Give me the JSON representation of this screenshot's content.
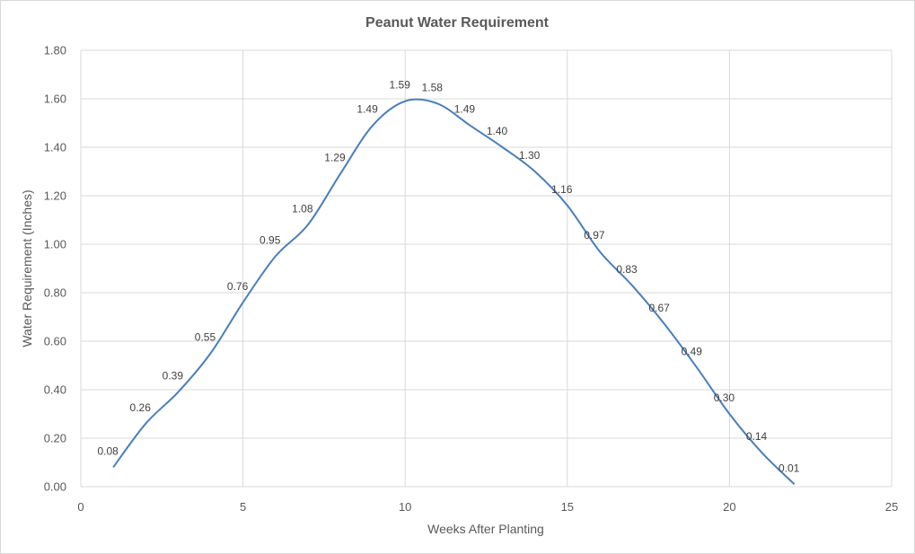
{
  "chart_data": {
    "type": "line",
    "title": "Peanut Water Requirement",
    "xlabel": "Weeks After Planting",
    "ylabel": "Water Requirement (Inches)",
    "xlim": [
      0,
      25
    ],
    "ylim": [
      0,
      1.8
    ],
    "x_ticks": [
      0,
      5,
      10,
      15,
      20,
      25
    ],
    "y_ticks": [
      "0.00",
      "0.20",
      "0.40",
      "0.60",
      "0.80",
      "1.00",
      "1.20",
      "1.40",
      "1.60",
      "1.80"
    ],
    "grid": true,
    "smoothed": true,
    "series_color": "#4a7ebb",
    "x": [
      1,
      2,
      3,
      4,
      5,
      6,
      7,
      8,
      9,
      10,
      11,
      12,
      13,
      14,
      15,
      16,
      17,
      18,
      19,
      20,
      21,
      22
    ],
    "series": [
      {
        "values": [
          0.08,
          0.26,
          0.39,
          0.55,
          0.76,
          0.95,
          1.08,
          1.29,
          1.49,
          1.59,
          1.58,
          1.49,
          1.4,
          1.3,
          1.16,
          0.97,
          0.83,
          0.67,
          0.49,
          0.3,
          0.14,
          0.01
        ],
        "labels": [
          "0.08",
          "0.26",
          "0.39",
          "0.55",
          "0.76",
          "0.95",
          "1.08",
          "1.29",
          "1.49",
          "1.59",
          "1.58",
          "1.49",
          "1.40",
          "1.30",
          "1.16",
          "0.97",
          "0.83",
          "0.67",
          "0.49",
          "0.30",
          "0.14",
          "0.01"
        ]
      }
    ]
  }
}
